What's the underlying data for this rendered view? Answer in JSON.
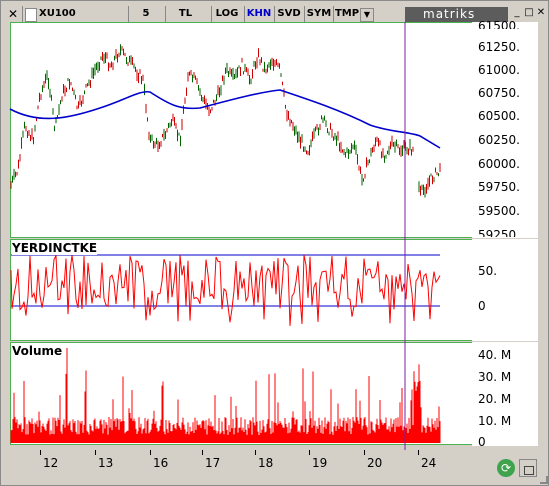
{
  "toolbar": {
    "close_label": "✕",
    "symbol": "XU100",
    "period": "5",
    "currency": "TL",
    "log": "LOG",
    "khn": "KHN",
    "svd": "SVD",
    "sym": "SYM",
    "tmp": "TMP",
    "dropdown_icon": "▼",
    "logo_text": "matriks",
    "btn_minimize": "_",
    "btn_maximize": "□",
    "btn_close": "✕"
  },
  "colors": {
    "price": "#006400",
    "price_alt": "#cc0000",
    "ma": "#0000cc",
    "osc": "#ff0000",
    "volume": "#ff0000",
    "cursor": "#7b1fa2",
    "panel_border": "#4caf50"
  },
  "price_panel": {
    "y_labels": [
      "61500.",
      "61250.",
      "61000.",
      "60750.",
      "60500.",
      "60250.",
      "60000.",
      "59750.",
      "59500.",
      "59250."
    ]
  },
  "osc_panel": {
    "title": "YERDINCTKE",
    "y_labels": [
      "50.",
      "0"
    ]
  },
  "volume_panel": {
    "title": "Volume",
    "y_labels": [
      "40. M",
      "30. M",
      "20. M",
      "10. M",
      "0"
    ]
  },
  "x_axis": {
    "labels": [
      "12",
      "13",
      "16",
      "17",
      "18",
      "19",
      "20",
      "24"
    ]
  },
  "icons": {
    "refresh": "refresh-icon",
    "lock": "lock-icon"
  }
}
